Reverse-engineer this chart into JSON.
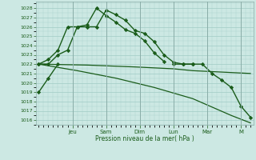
{
  "background_color": "#cce8e3",
  "grid_color": "#a0ccc5",
  "line_color": "#1a5c1a",
  "xlabel": "Pression niveau de la mer( hPa )",
  "ylim": [
    1015.5,
    1028.7
  ],
  "yticks": [
    1016,
    1017,
    1018,
    1019,
    1020,
    1021,
    1022,
    1023,
    1024,
    1025,
    1026,
    1027,
    1028
  ],
  "xlim": [
    -0.3,
    22.3
  ],
  "x_day_positions": [
    3.5,
    7,
    10.5,
    14,
    17.5,
    21
  ],
  "x_day_labels": [
    "Jeu",
    "Sam",
    "Dim",
    "Lun",
    "Mar",
    "M"
  ],
  "series": [
    {
      "x": [
        0,
        1,
        2,
        3,
        4,
        5,
        6,
        7,
        8,
        9,
        10,
        11,
        12,
        13,
        14,
        15,
        16
      ],
      "y": [
        1022,
        1022,
        1023,
        1023.5,
        1026,
        1026,
        1026,
        1027.8,
        1027.3,
        1026.7,
        1025.6,
        1025.3,
        1024.4,
        1023.0,
        1022.2,
        1022.0,
        1022.0
      ],
      "marker": "D",
      "markersize": 2.2,
      "linewidth": 1.0
    },
    {
      "x": [
        0,
        1,
        2,
        3,
        4,
        5,
        6,
        7,
        8,
        9,
        10,
        11,
        12,
        13
      ],
      "y": [
        1022,
        1022.5,
        1023.5,
        1026.0,
        1026.0,
        1026.2,
        1028.0,
        1027.2,
        1026.5,
        1025.7,
        1025.3,
        1024.5,
        1023.2,
        1022.3
      ],
      "marker": "D",
      "markersize": 2.2,
      "linewidth": 1.0
    },
    {
      "x": [
        0,
        1,
        2
      ],
      "y": [
        1019.0,
        1020.5,
        1022.0
      ],
      "marker": "D",
      "markersize": 2.2,
      "linewidth": 1.0
    },
    {
      "x": [
        0,
        5,
        10,
        14,
        16,
        22
      ],
      "y": [
        1022.0,
        1021.9,
        1021.7,
        1021.5,
        1021.3,
        1021.0
      ],
      "marker": null,
      "markersize": 0,
      "linewidth": 0.9
    },
    {
      "x": [
        0,
        4,
        8,
        12,
        16,
        20,
        22
      ],
      "y": [
        1022.0,
        1021.3,
        1020.5,
        1019.5,
        1018.3,
        1016.5,
        1015.7
      ],
      "marker": null,
      "markersize": 0,
      "linewidth": 0.9
    },
    {
      "x": [
        14,
        15,
        16,
        17,
        18,
        19,
        20,
        21,
        22
      ],
      "y": [
        1022.0,
        1022.0,
        1022.0,
        1022.0,
        1021.0,
        1020.3,
        1019.5,
        1017.5,
        1016.3
      ],
      "marker": "D",
      "markersize": 2.2,
      "linewidth": 1.0
    }
  ]
}
